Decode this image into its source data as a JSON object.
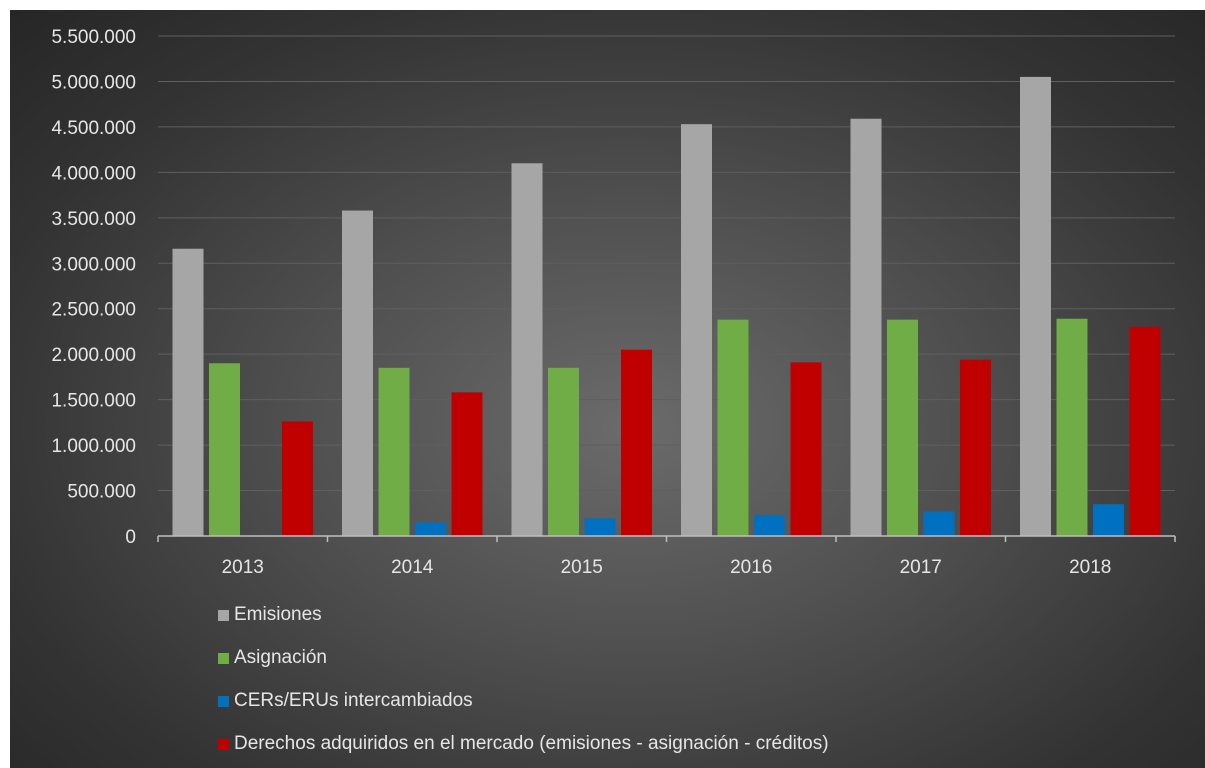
{
  "chart_data": {
    "type": "bar",
    "title": "",
    "xlabel": "",
    "ylabel": "",
    "categories": [
      "2013",
      "2014",
      "2015",
      "2016",
      "2017",
      "2018"
    ],
    "ylim": [
      0,
      5500000
    ],
    "yticks": [
      0,
      500000,
      1000000,
      1500000,
      2000000,
      2500000,
      3000000,
      3500000,
      4000000,
      4500000,
      5000000,
      5500000
    ],
    "ytick_labels": [
      "0",
      "500.000",
      "1.000.000",
      "1.500.000",
      "2.000.000",
      "2.500.000",
      "3.000.000",
      "3.500.000",
      "4.000.000",
      "4.500.000",
      "5.000.000",
      "5.500.000"
    ],
    "grid": true,
    "legend_position": "bottom",
    "series": [
      {
        "name": "Emisiones",
        "color": "#a6a6a6",
        "values": [
          3160000,
          3580000,
          4100000,
          4530000,
          4590000,
          5050000
        ]
      },
      {
        "name": "Asignación",
        "color": "#70ad47",
        "values": [
          1900000,
          1850000,
          1850000,
          2380000,
          2380000,
          2390000
        ]
      },
      {
        "name": "CERs/ERUs intercambiados",
        "color": "#0070c0",
        "values": [
          0,
          150000,
          195000,
          230000,
          270000,
          350000
        ]
      },
      {
        "name": "Derechos adquiridos en el mercado (emisiones - asignación - créditos)",
        "color": "#c00000",
        "values": [
          1260000,
          1580000,
          2050000,
          1910000,
          1940000,
          2300000
        ]
      }
    ]
  }
}
